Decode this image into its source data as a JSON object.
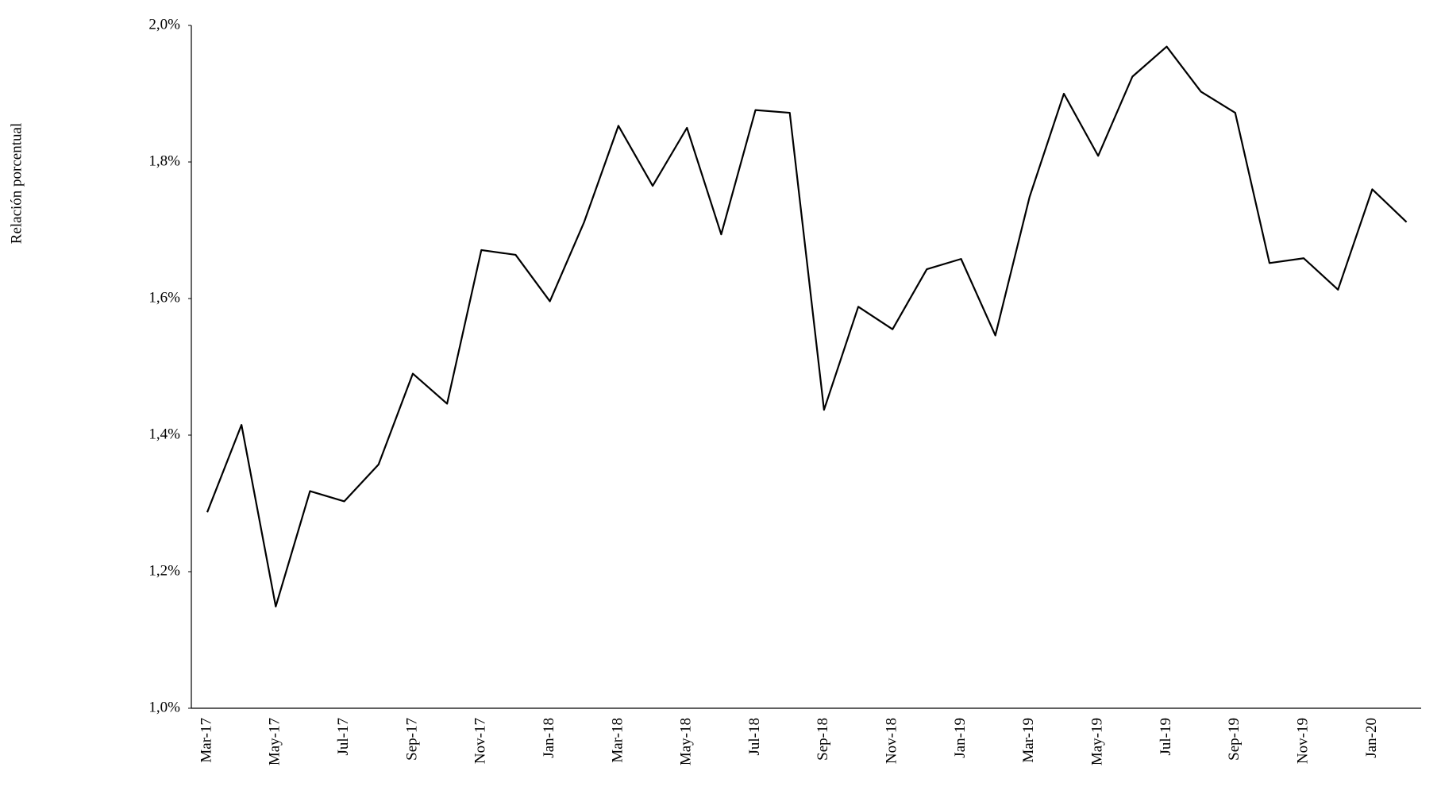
{
  "chart_data": {
    "type": "line",
    "y_label": "Relación porcentual",
    "categories": [
      "Mar-17",
      null,
      "May-17",
      null,
      "Jul-17",
      null,
      "Sep-17",
      null,
      "Nov-17",
      null,
      "Jan-18",
      null,
      "Mar-18",
      null,
      "May-18",
      null,
      "Jul-18",
      null,
      "Sep-18",
      null,
      "Nov-18",
      null,
      "Jan-19",
      null,
      "Mar-19",
      null,
      "May-19",
      null,
      "Jul-19",
      null,
      "Sep-19",
      null,
      "Nov-19",
      null,
      "Jan-20",
      null
    ],
    "values": [
      1.287,
      1.415,
      1.149,
      1.318,
      1.303,
      1.357,
      1.49,
      1.446,
      1.671,
      1.664,
      1.596,
      1.712,
      1.853,
      1.765,
      1.85,
      1.694,
      1.876,
      1.872,
      1.437,
      1.588,
      1.555,
      1.643,
      1.658,
      1.546,
      1.749,
      1.9,
      1.809,
      1.925,
      1.969,
      1.903,
      1.872,
      1.652,
      1.659,
      1.613,
      1.76,
      1.712
    ],
    "color": "#000000",
    "ylim": [
      1.0,
      2.0
    ],
    "yticks": [
      {
        "value": 1.0,
        "label": "1,0%"
      },
      {
        "value": 1.2,
        "label": "1,2%"
      },
      {
        "value": 1.4,
        "label": "1,4%"
      },
      {
        "value": 1.6,
        "label": "1,6%"
      },
      {
        "value": 1.8,
        "label": "1,8%"
      },
      {
        "value": 2.0,
        "label": "2,0%"
      }
    ],
    "grid": false
  }
}
